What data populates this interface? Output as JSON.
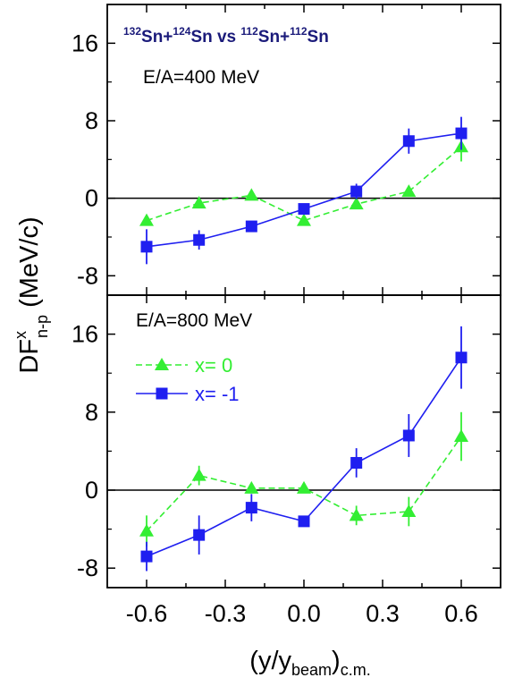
{
  "chart_data": [
    {
      "type": "line",
      "panel": "top",
      "title_parts": [
        "132",
        "Sn+",
        "124",
        "Sn vs ",
        "112",
        "Sn+",
        "112",
        "Sn"
      ],
      "annotation": "E/A=400 MeV",
      "x": [
        -0.6,
        -0.4,
        -0.2,
        0.0,
        0.2,
        0.4,
        0.6
      ],
      "ylim": [
        -10,
        20
      ],
      "yticks": [
        "-8",
        "0",
        "8",
        "16"
      ],
      "series": [
        {
          "key": "x0",
          "color": "#33ee33",
          "marker": "triangle",
          "line": "dashed",
          "values": [
            -2.3,
            -0.5,
            0.3,
            -2.3,
            -0.6,
            0.7,
            5.3
          ],
          "errors": [
            0,
            0,
            0,
            0,
            0,
            0,
            1.5
          ]
        },
        {
          "key": "xm1",
          "color": "#1f1ff0",
          "marker": "square",
          "line": "solid",
          "values": [
            -5.0,
            -4.3,
            -2.9,
            -1.1,
            0.7,
            5.9,
            6.7
          ],
          "errors": [
            1.8,
            1.0,
            0,
            0,
            0.8,
            1.3,
            1.7
          ]
        }
      ]
    },
    {
      "type": "line",
      "panel": "bottom",
      "annotation": "E/A=800 MeV",
      "x": [
        -0.6,
        -0.4,
        -0.2,
        0.0,
        0.2,
        0.4,
        0.6
      ],
      "ylim": [
        -10,
        20
      ],
      "yticks": [
        "-8",
        "0",
        "8",
        "16"
      ],
      "legend": [
        {
          "series": "x0",
          "label": "x= 0"
        },
        {
          "series": "xm1",
          "label": "x= -1"
        }
      ],
      "series": [
        {
          "key": "x0",
          "color": "#33ee33",
          "marker": "triangle",
          "line": "dashed",
          "values": [
            -4.2,
            1.5,
            0.2,
            0.2,
            -2.6,
            -2.2,
            5.5
          ],
          "errors": [
            1.6,
            1.0,
            0,
            0,
            1.0,
            1.5,
            2.5
          ]
        },
        {
          "key": "xm1",
          "color": "#1f1ff0",
          "marker": "square",
          "line": "solid",
          "values": [
            -6.8,
            -4.6,
            -1.8,
            -3.2,
            2.8,
            5.6,
            13.6
          ],
          "errors": [
            1.5,
            2.0,
            1.4,
            0,
            1.5,
            2.2,
            3.2
          ]
        }
      ]
    }
  ],
  "x_axis": {
    "ticks": [
      "-0.6",
      "-0.3",
      "0.0",
      "0.3",
      "0.6"
    ],
    "tick_values": [
      -0.6,
      -0.3,
      0.0,
      0.3,
      0.6
    ],
    "xlim": [
      -0.75,
      0.75
    ],
    "label_main": "(y/y",
    "label_sub1": "beam",
    "label_mid": ")",
    "label_sub2": "c.m."
  },
  "y_axis": {
    "label_main": "DF",
    "label_sup": "x",
    "label_sub": "n-p",
    "label_unit": " (MeV/c)"
  }
}
